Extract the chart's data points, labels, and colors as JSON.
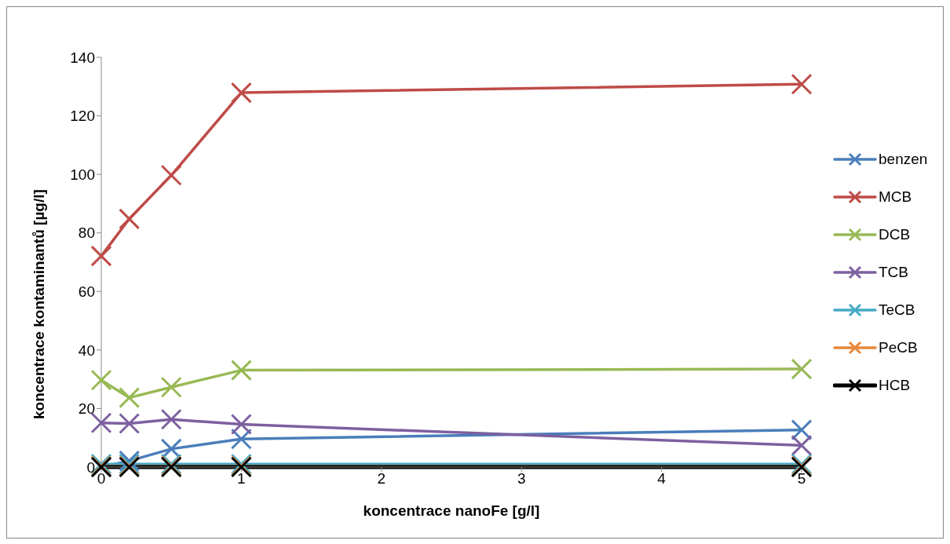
{
  "chart_data": {
    "type": "line",
    "xlabel": "koncentrace nanoFe [g/l]",
    "ylabel": "koncentrace kontaminantů [µg/l]",
    "x": [
      0,
      0.2,
      0.5,
      1,
      5
    ],
    "series": [
      {
        "name": "benzen",
        "color": "#4a7ebb",
        "marker": "cross",
        "values": [
          0,
          2.1,
          6.2,
          9.6,
          12.7
        ]
      },
      {
        "name": "MCB",
        "color": "#be4b48",
        "marker": "cross",
        "values": [
          72.1,
          84.8,
          99.7,
          127.9,
          130.8
        ]
      },
      {
        "name": "DCB",
        "color": "#98b954",
        "marker": "cross",
        "values": [
          29.7,
          23.7,
          27.3,
          33.1,
          33.5
        ]
      },
      {
        "name": "TCB",
        "color": "#7d60a0",
        "marker": "cross",
        "values": [
          15.1,
          14.9,
          16.3,
          14.6,
          7.4
        ]
      },
      {
        "name": "TeCB",
        "color": "#46aac5",
        "marker": "cross",
        "values": [
          1,
          1,
          1,
          1,
          1
        ]
      },
      {
        "name": "PeCB",
        "color": "#e8883a",
        "marker": "cross",
        "values": [
          0.3,
          0.3,
          0.3,
          0.3,
          0.3
        ]
      },
      {
        "name": "HCB",
        "color": "#000000",
        "marker": "cross",
        "values": [
          0,
          0,
          0,
          0,
          0
        ]
      }
    ],
    "xlim": [
      0,
      5
    ],
    "xticks": [
      0,
      1,
      2,
      3,
      4,
      5
    ],
    "ylim": [
      0,
      140
    ],
    "yticks": [
      0,
      20,
      40,
      60,
      80,
      100,
      120,
      140
    ],
    "grid": false,
    "legend": "right",
    "line_style": "solid"
  }
}
